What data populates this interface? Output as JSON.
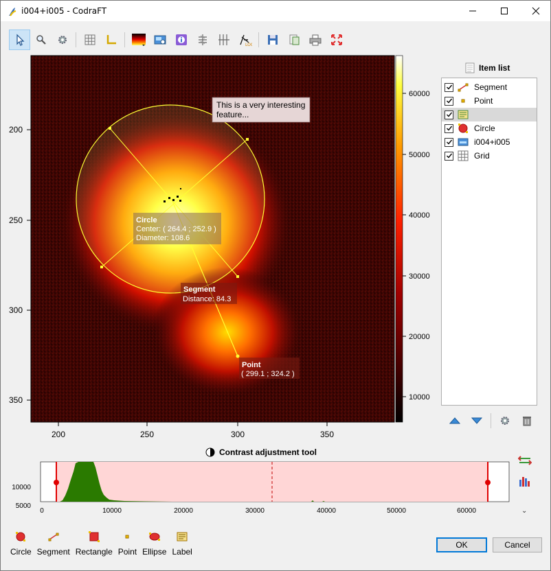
{
  "window": {
    "title": "i004+i005 - CodraFT"
  },
  "toolbar": {
    "icons": [
      "select-arrow-icon",
      "zoom-icon",
      "settings-icon",
      "grid-icon",
      "axes-icon",
      "colormap-icon",
      "image-stats-icon",
      "label-icon",
      "xcs-icon",
      "ycs-icon",
      "log-scale-icon",
      "save-icon",
      "copy-icon",
      "print-icon",
      "fit-view-icon"
    ]
  },
  "plot": {
    "x_ticks": [
      "200",
      "250",
      "300",
      "350"
    ],
    "y_ticks": [
      "200",
      "250",
      "300",
      "350"
    ],
    "colorbar_ticks": [
      "60000",
      "50000",
      "40000",
      "30000",
      "20000",
      "10000"
    ],
    "label_annotation": "This is a very interesting feature...",
    "label_line1": "This is a very interesting",
    "label_line2": "feature...",
    "circle_title": "Circle",
    "circle_center": "Center: ( 264.4 ; 252.9 )",
    "circle_diameter": "Diameter: 108.6",
    "segment_title": "Segment",
    "segment_distance": "Distance: 84.3",
    "point_title": "Point",
    "point_coords": "( 299.1 ; 324.2 )"
  },
  "item_list": {
    "title": "Item list",
    "items": [
      {
        "label": "Segment",
        "checked": true,
        "icon": "segment-icon"
      },
      {
        "label": "Point",
        "checked": true,
        "icon": "point-icon"
      },
      {
        "label": "",
        "checked": true,
        "icon": "label-icon",
        "selected": true
      },
      {
        "label": "Circle",
        "checked": true,
        "icon": "circle-icon"
      },
      {
        "label": "i004+i005",
        "checked": true,
        "icon": "image-icon"
      },
      {
        "label": "Grid",
        "checked": true,
        "icon": "grid-icon"
      }
    ]
  },
  "contrast": {
    "title": "Contrast adjustment tool",
    "y_ticks": [
      "10000",
      "5000",
      "0"
    ],
    "x_ticks": [
      "0",
      "10000",
      "20000",
      "30000",
      "40000",
      "50000",
      "60000"
    ]
  },
  "bottom_tools": [
    "Circle",
    "Segment",
    "Rectangle",
    "Point",
    "Ellipse",
    "Label"
  ],
  "buttons": {
    "ok": "OK",
    "cancel": "Cancel"
  },
  "colors": {
    "accent": "#0078d7",
    "curve": "#ffff00",
    "hist": "#2a7a00",
    "range": "#ffd6d6",
    "marker": "#e00000"
  }
}
